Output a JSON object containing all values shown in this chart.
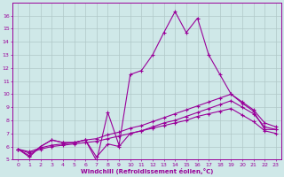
{
  "xlabel": "Windchill (Refroidissement éolien,°C)",
  "background_color": "#cfe8e8",
  "grid_color": "#b0c8c8",
  "line_color": "#990099",
  "xlim": [
    -0.5,
    23.5
  ],
  "ylim": [
    5,
    17
  ],
  "yticks": [
    5,
    6,
    7,
    8,
    9,
    10,
    11,
    12,
    13,
    14,
    15,
    16
  ],
  "xticks": [
    0,
    1,
    2,
    3,
    4,
    5,
    6,
    7,
    8,
    9,
    10,
    11,
    12,
    13,
    14,
    15,
    16,
    17,
    18,
    19,
    20,
    21,
    22,
    23
  ],
  "lines": [
    {
      "x": [
        0,
        1,
        2,
        3,
        4,
        5,
        6,
        7,
        8,
        9,
        10,
        11,
        12,
        13,
        14,
        15,
        16,
        17,
        18,
        19,
        20,
        21,
        22,
        23
      ],
      "y": [
        5.8,
        5.2,
        6.0,
        6.5,
        6.3,
        6.3,
        6.5,
        4.9,
        8.6,
        6.1,
        11.5,
        11.8,
        13.0,
        14.7,
        16.3,
        14.7,
        15.8,
        13.0,
        11.5,
        10.0,
        9.3,
        8.7,
        7.3,
        7.3
      ]
    },
    {
      "x": [
        0,
        1,
        2,
        3,
        4,
        5,
        6,
        7,
        8,
        9,
        10,
        11,
        12,
        13,
        14,
        15,
        16,
        17,
        18,
        19,
        20,
        21,
        22,
        23
      ],
      "y": [
        5.8,
        5.3,
        6.0,
        6.5,
        6.3,
        6.3,
        6.5,
        5.2,
        6.2,
        6.0,
        7.0,
        7.2,
        7.5,
        7.8,
        8.0,
        8.3,
        8.6,
        8.9,
        9.2,
        9.5,
        9.0,
        8.5,
        7.5,
        7.3
      ]
    },
    {
      "x": [
        0,
        1,
        2,
        3,
        4,
        5,
        6,
        7,
        8,
        9,
        10,
        11,
        12,
        13,
        14,
        15,
        16,
        17,
        18,
        19,
        20,
        21,
        22,
        23
      ],
      "y": [
        5.8,
        5.6,
        5.9,
        6.1,
        6.2,
        6.3,
        6.5,
        6.6,
        6.9,
        7.1,
        7.4,
        7.6,
        7.9,
        8.2,
        8.5,
        8.8,
        9.1,
        9.4,
        9.7,
        10.0,
        9.4,
        8.8,
        7.8,
        7.5
      ]
    },
    {
      "x": [
        0,
        1,
        2,
        3,
        4,
        5,
        6,
        7,
        8,
        9,
        10,
        11,
        12,
        13,
        14,
        15,
        16,
        17,
        18,
        19,
        20,
        21,
        22,
        23
      ],
      "y": [
        5.8,
        5.5,
        5.8,
        6.0,
        6.1,
        6.2,
        6.3,
        6.4,
        6.6,
        6.8,
        7.0,
        7.2,
        7.4,
        7.6,
        7.8,
        8.0,
        8.3,
        8.5,
        8.7,
        8.9,
        8.4,
        7.9,
        7.2,
        7.0
      ]
    }
  ]
}
